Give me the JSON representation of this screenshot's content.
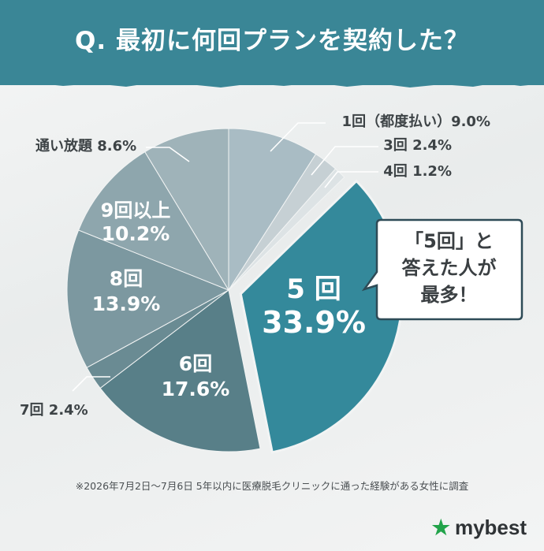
{
  "header": {
    "title": "Q. 最初に何回プランを契約した？"
  },
  "chart_data": {
    "type": "pie",
    "title": "Q. 最初に何回プランを契約した？",
    "series": [
      {
        "name": "1回（都度払い）",
        "value": 9.0,
        "color": "#a9bcc4",
        "label_outside": "1回（都度払い）9.0%"
      },
      {
        "name": "3回",
        "value": 2.4,
        "color": "#c6d0d4",
        "label_outside": "3回 2.4%"
      },
      {
        "name": "4回",
        "value": 1.2,
        "color": "#dde3e5",
        "label_outside": "4回 1.2%"
      },
      {
        "name": "5回",
        "value": 33.9,
        "color": "#34899b",
        "exploded": true,
        "label_inside": [
          "5 回",
          "33.9%"
        ]
      },
      {
        "name": "6回",
        "value": 17.6,
        "color": "#587f88",
        "label_inside": [
          "6回",
          "17.6%"
        ]
      },
      {
        "name": "7回",
        "value": 2.4,
        "color": "#6a8b93",
        "label_outside": "7回 2.4%"
      },
      {
        "name": "8回",
        "value": 13.9,
        "color": "#7c98a0",
        "label_inside": [
          "8回",
          "13.9%"
        ]
      },
      {
        "name": "9回以上",
        "value": 10.2,
        "color": "#8ea6ad",
        "label_inside": [
          "9回以上",
          "10.2%"
        ]
      },
      {
        "name": "通い放題",
        "value": 8.6,
        "color": "#9fb3b9",
        "label_outside": "通い放題 8.6%"
      }
    ]
  },
  "callout": {
    "lines": [
      "「5回」と",
      "答えた人が",
      "最多！"
    ]
  },
  "footnote": "※2026年7月2日〜7月6日 5年以内に医療脱毛クリニックに通った経験がある女性に調査",
  "brand": {
    "name": "mybest",
    "icon": "star-icon",
    "icon_color": "#22a34a"
  }
}
